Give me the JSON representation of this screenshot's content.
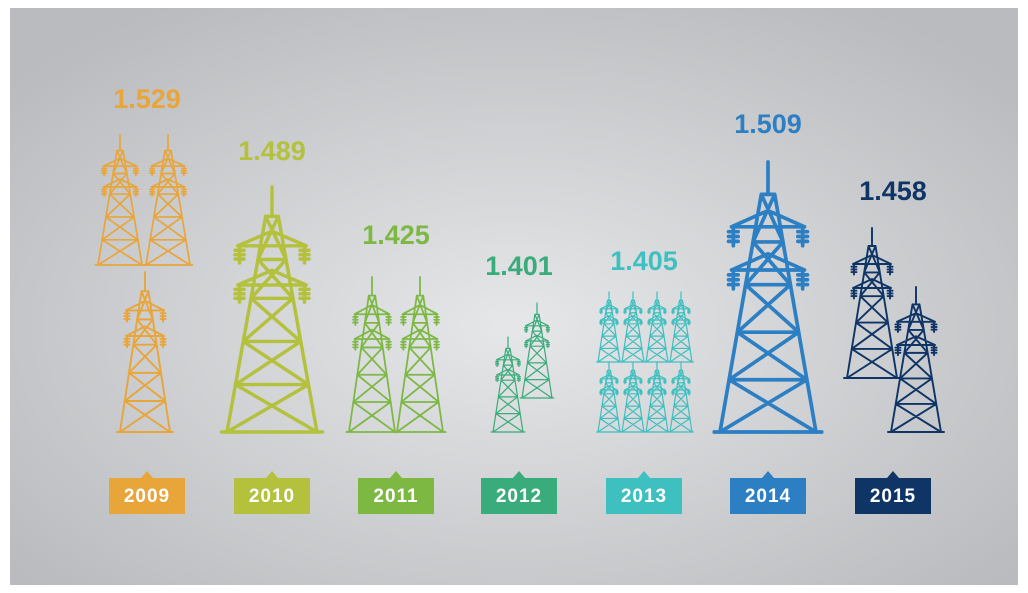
{
  "chart_data": {
    "type": "pictograph",
    "categories": [
      "2009",
      "2010",
      "2011",
      "2012",
      "2013",
      "2014",
      "2015"
    ],
    "values": [
      1.529,
      1.489,
      1.425,
      1.401,
      1.405,
      1.509,
      1.458
    ],
    "colors": [
      "#e8a53a",
      "#b4c13c",
      "#7db843",
      "#3aab7a",
      "#3ebfc0",
      "#2d7fc4",
      "#0f3566"
    ]
  }
}
